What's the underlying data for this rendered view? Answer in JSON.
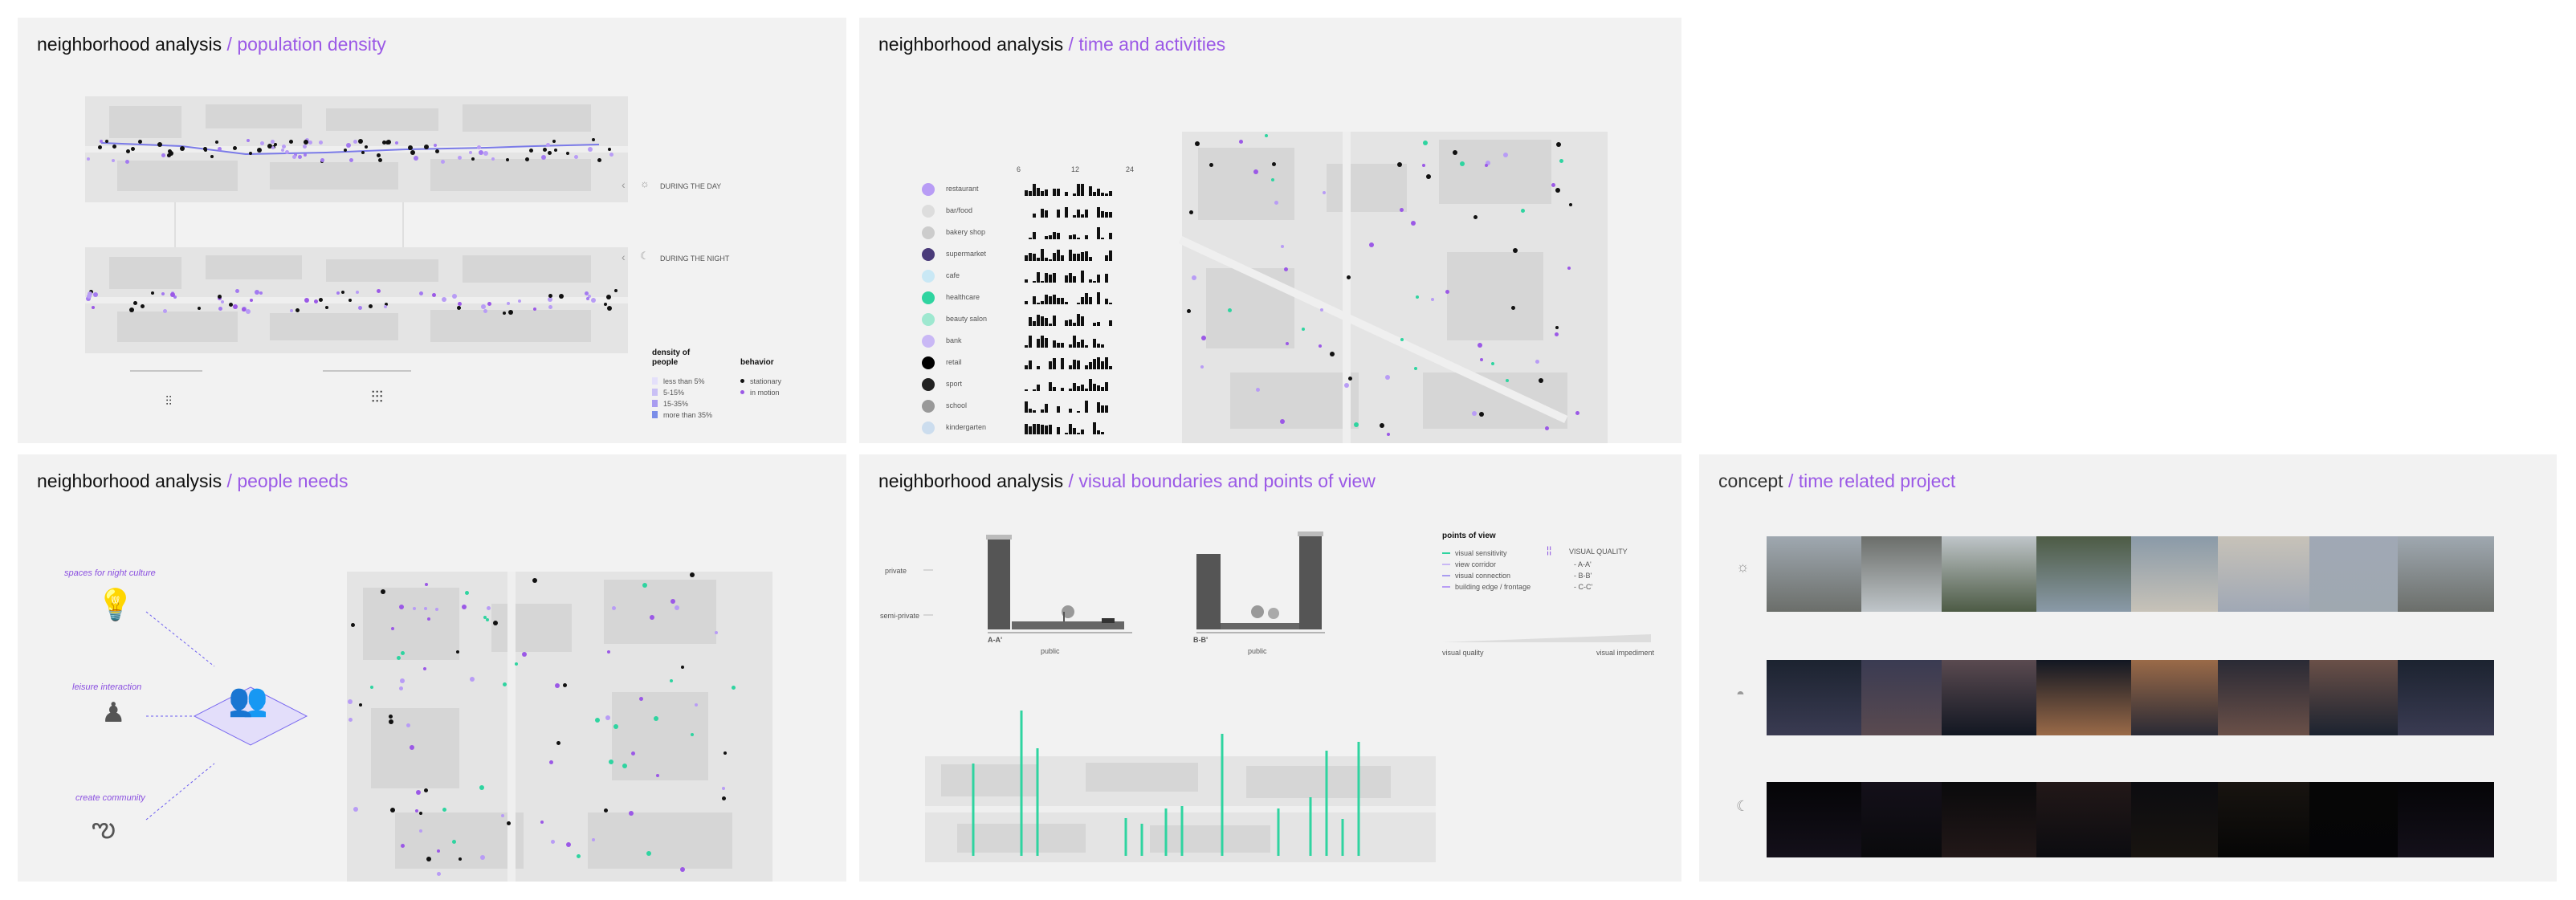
{
  "panels": {
    "p1": {
      "prefix": "neighborhood analysis",
      "sep": " / ",
      "highlight": "population density"
    },
    "p2": {
      "prefix": "neighborhood analysis",
      "sep": " / ",
      "highlight": "time and activities"
    },
    "p3": {
      "prefix": "neighborhood analysis",
      "sep": " / ",
      "highlight": "people needs"
    },
    "p4": {
      "prefix": "neighborhood analysis",
      "sep": " / ",
      "highlight": "visual boundaries and points of view"
    },
    "p5": {
      "prefix": "concept",
      "sep": " / ",
      "highlight": "time related project"
    }
  },
  "density": {
    "day_label": "DURING THE DAY",
    "night_label": "DURING THE NIGHT",
    "legend_title": "density of people",
    "density_items": [
      "less than 5%",
      "5-15%",
      "15-35%",
      "more than 35%"
    ],
    "behavior_title": "behavior",
    "behavior_items": [
      "stationary",
      "in motion"
    ]
  },
  "activities": {
    "axis": [
      "6",
      "12",
      "24"
    ],
    "items": [
      "restaurant",
      "bar/food",
      "bakery shop",
      "supermarket",
      "cafe",
      "healthcare",
      "beauty salon",
      "bank",
      "retail",
      "sport",
      "school",
      "kindergarten"
    ]
  },
  "needs": {
    "items": [
      "spaces for night culture",
      "leisure interaction",
      "create community"
    ]
  },
  "boundaries": {
    "left_labels": [
      "private",
      "semi-private"
    ],
    "section_a": "A-A'",
    "section_b": "B-B'",
    "public_a": "public",
    "public_b": "public",
    "pov_title": "points of view",
    "pov_items": [
      "visual sensitivity",
      "view corridor",
      "visual connection",
      "building edge / frontage"
    ],
    "visual_quality_title": "VISUAL QUALITY",
    "quality_items": [
      "- A-A'",
      "- B-B'",
      "- C-C'"
    ],
    "scale_low": "visual quality",
    "scale_high": "visual impediment"
  },
  "colors": {
    "accent": "#9b59e6",
    "green": "#2fd4a0",
    "panel": "#f2f2f2"
  }
}
